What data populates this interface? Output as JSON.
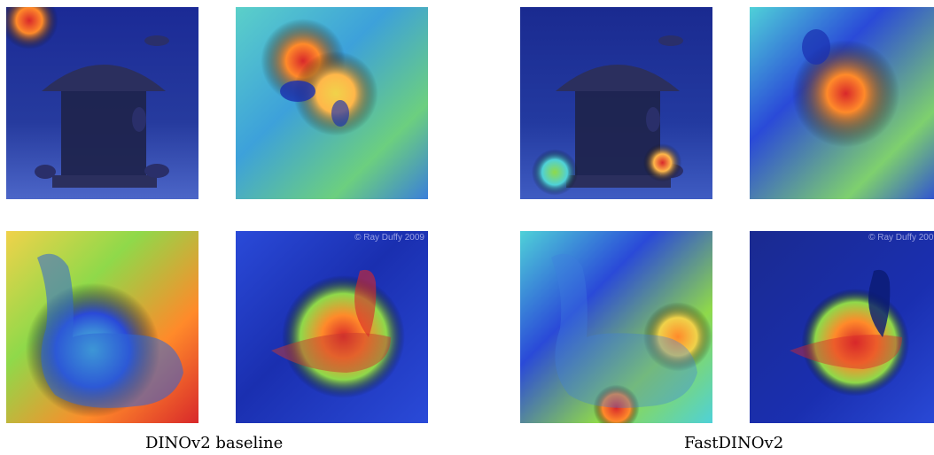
{
  "captions": {
    "left": "DINOv2 baseline",
    "right": "FastDINOv2"
  },
  "watermark": "© Ray Duffy 2009",
  "colors": {
    "deep_blue": "#0a1a72",
    "blue": "#2a4ad8",
    "cyan": "#4fd1d8",
    "green": "#8fd94a",
    "yellow": "#f0d24a",
    "orange": "#ff8a2a",
    "red": "#d8282a"
  }
}
